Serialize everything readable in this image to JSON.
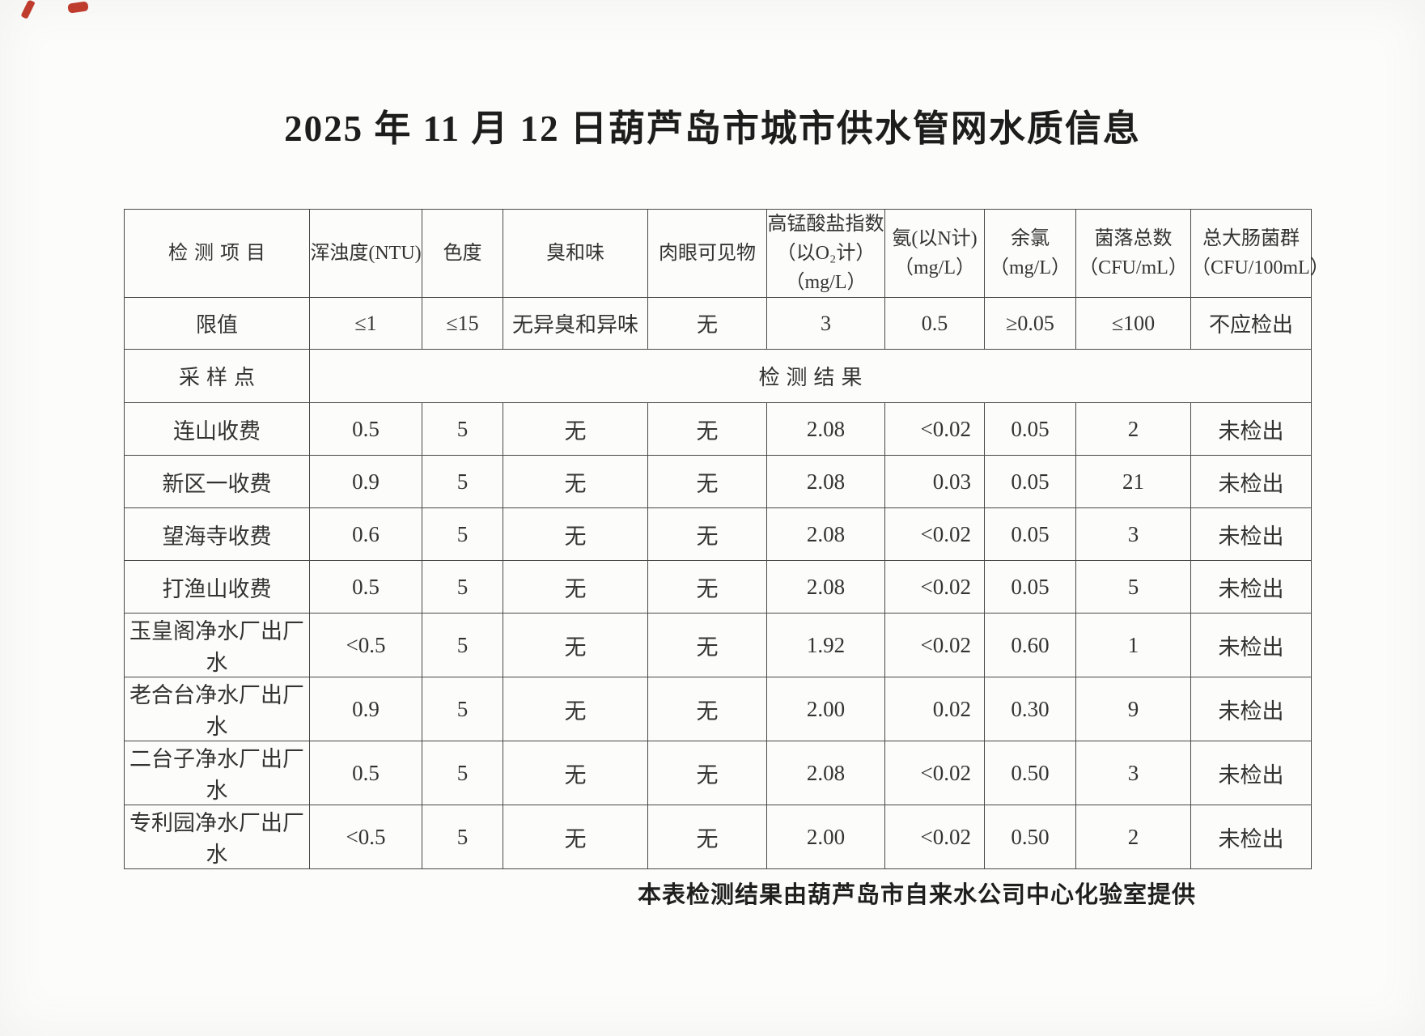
{
  "page": {
    "title": "2025 年 11 月 12 日葫芦岛市城市供水管网水质信息",
    "footer": "本表检测结果由葫芦岛市自来水公司中心化验室提供"
  },
  "table": {
    "headers": [
      "检测项目",
      "浑浊度(NTU)",
      "色度",
      "臭和味",
      "肉眼可见物",
      "高锰酸盐指数\n（以O₂计）\n（mg/L）",
      "氨(以N计)\n（mg/L）",
      "余氯\n（mg/L）",
      "菌落总数\n（CFU/mL）",
      "总大肠菌群\n（CFU/100mL）"
    ],
    "limit_row": {
      "label": "限值",
      "values": [
        "≤1",
        "≤15",
        "无异臭和异味",
        "无",
        "3",
        "0.5",
        "≥0.05",
        "≤100",
        "不应检出"
      ]
    },
    "sampling_row": {
      "label": "采样点",
      "result_label": "检测结果"
    },
    "rows": [
      {
        "name": "连山收费",
        "values": [
          "0.5",
          "5",
          "无",
          "无",
          "2.08",
          "<0.02",
          "0.05",
          "2",
          "未检出"
        ]
      },
      {
        "name": "新区一收费",
        "values": [
          "0.9",
          "5",
          "无",
          "无",
          "2.08",
          "0.03",
          "0.05",
          "21",
          "未检出"
        ]
      },
      {
        "name": "望海寺收费",
        "values": [
          "0.6",
          "5",
          "无",
          "无",
          "2.08",
          "<0.02",
          "0.05",
          "3",
          "未检出"
        ]
      },
      {
        "name": "打渔山收费",
        "values": [
          "0.5",
          "5",
          "无",
          "无",
          "2.08",
          "<0.02",
          "0.05",
          "5",
          "未检出"
        ]
      },
      {
        "name": "玉皇阁净水厂出厂水",
        "values": [
          "<0.5",
          "5",
          "无",
          "无",
          "1.92",
          "<0.02",
          "0.60",
          "1",
          "未检出"
        ]
      },
      {
        "name": "老合台净水厂出厂水",
        "values": [
          "0.9",
          "5",
          "无",
          "无",
          "2.00",
          "0.02",
          "0.30",
          "9",
          "未检出"
        ]
      },
      {
        "name": "二台子净水厂出厂水",
        "values": [
          "0.5",
          "5",
          "无",
          "无",
          "2.08",
          "<0.02",
          "0.50",
          "3",
          "未检出"
        ]
      },
      {
        "name": "专利园净水厂出厂水",
        "values": [
          "<0.5",
          "5",
          "无",
          "无",
          "2.00",
          "<0.02",
          "0.50",
          "2",
          "未检出"
        ]
      }
    ]
  },
  "artifacts": {
    "red_mark_color": "#c23b2c"
  }
}
